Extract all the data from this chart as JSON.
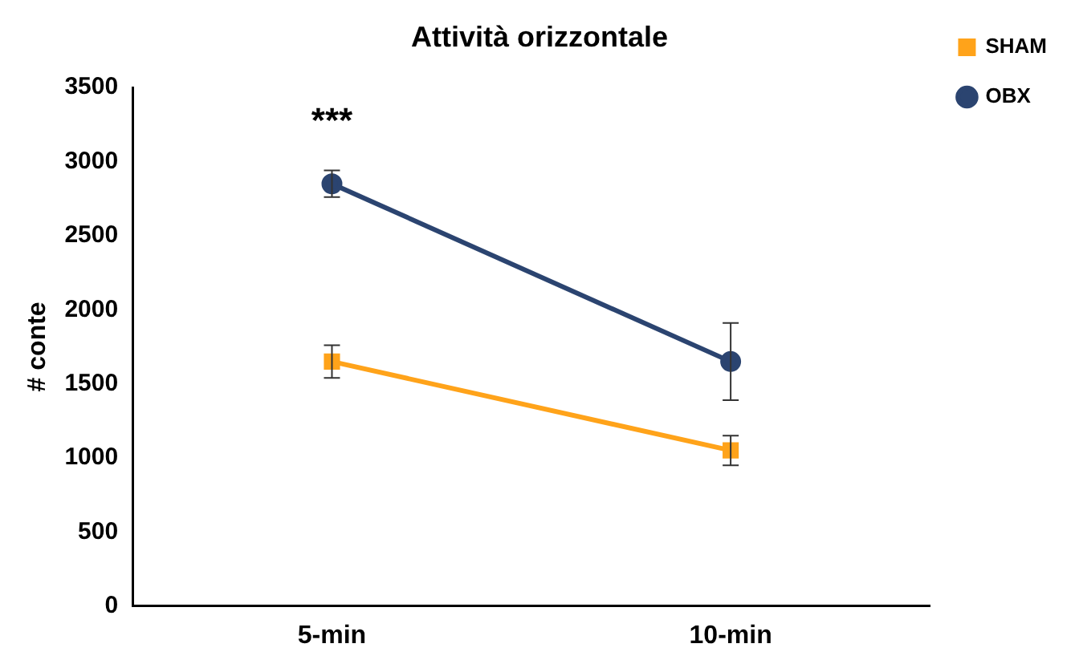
{
  "chart_data": {
    "type": "line",
    "title": "Attività orizzontale",
    "ylabel": "# conte",
    "categories": [
      "5-min",
      "10-min"
    ],
    "series": [
      {
        "name": "SHAM",
        "color": "#ffa31a",
        "marker": "square",
        "values": [
          1650,
          1050
        ],
        "errors": [
          110,
          100
        ]
      },
      {
        "name": "OBX",
        "color": "#2b4470",
        "marker": "circle",
        "values": [
          2850,
          1650
        ],
        "errors": [
          90,
          260
        ]
      }
    ],
    "ylim": [
      0,
      3500
    ],
    "yticks": [
      0,
      500,
      1000,
      1500,
      2000,
      2500,
      3000,
      3500
    ],
    "annotations": [
      "***"
    ],
    "grid": false,
    "legend": "top right"
  }
}
